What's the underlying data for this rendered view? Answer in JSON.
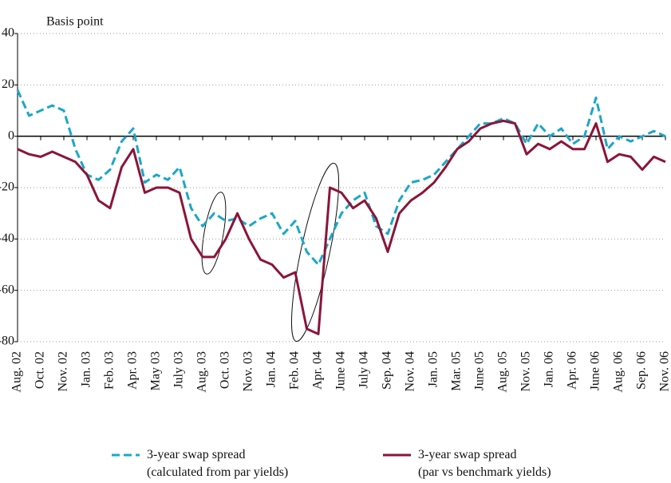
{
  "chart_data": {
    "type": "line",
    "y_label": "Basis point",
    "categories": [
      "Aug. 02",
      null,
      "Oct. 02",
      null,
      "Nov. 02",
      null,
      "Jan. 03",
      null,
      "Feb. 03",
      null,
      "Apr. 03",
      null,
      "May 03",
      null,
      "July 03",
      null,
      "Aug. 03",
      null,
      "Oct. 03",
      null,
      "Nov. 03",
      null,
      "Jan. 04",
      null,
      "Feb. 04",
      null,
      "Apr. 04",
      null,
      "June 04",
      null,
      "July 04",
      null,
      "Sep. 04",
      null,
      "Nov. 04",
      null,
      "Jan. 05",
      null,
      "Mar. 05",
      null,
      "June 05",
      null,
      "Aug. 05",
      null,
      "Nov. 05",
      null,
      "Jan. 06",
      null,
      "Apr. 06",
      null,
      "June 06",
      null,
      "Aug. 06",
      null,
      "Sep. 06",
      null,
      "Nov. 06"
    ],
    "series": [
      {
        "name": "3-year swap spread (calculated from par yields)",
        "color": "#1aa7c8",
        "dashed": true,
        "values": [
          18,
          8,
          10,
          12,
          10,
          -5,
          -15,
          -17,
          -13,
          -2,
          3,
          -18,
          -15,
          -17,
          -12,
          -28,
          -35,
          -30,
          -33,
          -32,
          -35,
          -32,
          -30,
          -38,
          -33,
          -45,
          -50,
          -40,
          -30,
          -25,
          -22,
          -35,
          -38,
          -25,
          -18,
          -17,
          -15,
          -10,
          -5,
          0,
          5,
          5,
          7,
          5,
          -3,
          5,
          0,
          3,
          -3,
          0,
          15,
          -5,
          0,
          -2,
          0,
          2,
          0
        ]
      },
      {
        "name": "3-year swap spread (par vs benchmark yields)",
        "color": "#8b1538",
        "dashed": false,
        "values": [
          -5,
          -7,
          -8,
          -6,
          -8,
          -10,
          -15,
          -25,
          -28,
          -12,
          -5,
          -22,
          -20,
          -20,
          -22,
          -40,
          -47,
          -47,
          -40,
          -30,
          -40,
          -48,
          -50,
          -55,
          -53,
          -75,
          -77,
          -20,
          -22,
          -28,
          -25,
          -32,
          -45,
          -30,
          -25,
          -22,
          -18,
          -12,
          -5,
          -2,
          3,
          5,
          6,
          5,
          -7,
          -3,
          -5,
          -2,
          -5,
          -5,
          5,
          -10,
          -7,
          -8,
          -13,
          -8,
          -10
        ]
      }
    ],
    "ylim": [
      -80,
      40
    ],
    "yticks": [
      -80,
      -60,
      -40,
      -20,
      0,
      20,
      40
    ],
    "grid": true
  }
}
